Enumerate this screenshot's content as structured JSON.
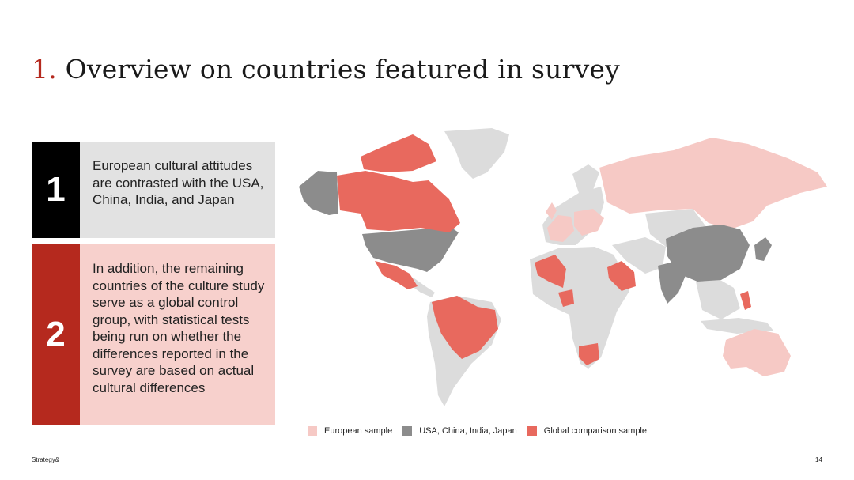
{
  "slide": {
    "title_number": "1.",
    "title_text": "Overview on countries featured in survey",
    "footer_brand": "Strategy&",
    "page_number": "14"
  },
  "boxes": [
    {
      "badge": "1",
      "text": "European cultural attitudes are contrasted with the USA, China, India, and Japan"
    },
    {
      "badge": "2",
      "text": "In addition, the remaining countries of the culture study serve as a global control group, with statistical tests being run on whether the differences reported in the survey are based on actual cultural differences"
    }
  ],
  "legend": [
    {
      "label": "European sample",
      "color": "#f6c9c5"
    },
    {
      "label": "USA, China, India, Japan",
      "color": "#8c8c8c"
    },
    {
      "label": "Global comparison sample",
      "color": "#e8695e"
    }
  ],
  "colors": {
    "base_land": "#dcdcdc",
    "european": "#f6c9c5",
    "core": "#8c8c8c",
    "global": "#e8695e",
    "accent": "#b5291e"
  }
}
